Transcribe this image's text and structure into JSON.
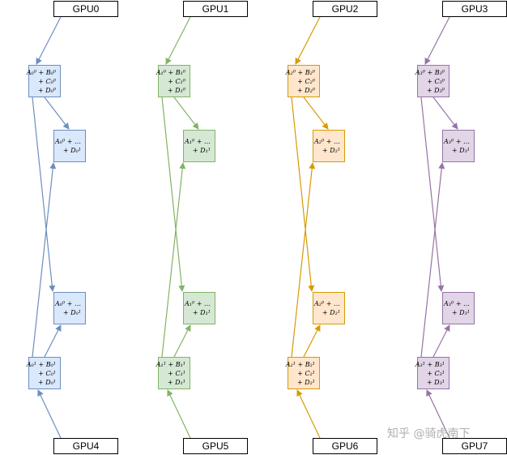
{
  "gpus": [
    "GPU0",
    "GPU1",
    "GPU2",
    "GPU3",
    "GPU4",
    "GPU5",
    "GPU6",
    "GPU7"
  ],
  "columns": [
    {
      "color": "#6c8ebf",
      "top_cell": [
        "A₀⁰ + B₀⁰",
        "+ C₀⁰",
        "+ D₀⁰"
      ],
      "mid_cell_upper": [
        "A₀⁰ + …",
        "+ D₀¹"
      ],
      "mid_cell_lower": [
        "A₀⁰ + …",
        "+ D₀¹"
      ],
      "bottom_cell": [
        "A₀¹ + B₀¹",
        "+ C₀¹",
        "+ D₀¹"
      ]
    },
    {
      "color": "#82b366",
      "top_cell": [
        "A₁⁰ + B₁⁰",
        "+ C₁⁰",
        "+ D₁⁰"
      ],
      "mid_cell_upper": [
        "A₁⁰ + …",
        "+ D₁¹"
      ],
      "mid_cell_lower": [
        "A₁⁰ + …",
        "+ D₁¹"
      ],
      "bottom_cell": [
        "A₁¹ + B₁¹",
        "+ C₁¹",
        "+ D₁¹"
      ]
    },
    {
      "color": "#d79b00",
      "top_cell": [
        "A₂⁰ + B₂⁰",
        "+ C₂⁰",
        "+ D₂⁰"
      ],
      "mid_cell_upper": [
        "A₂⁰ + …",
        "+ D₂¹"
      ],
      "mid_cell_lower": [
        "A₂⁰ + …",
        "+ D₂¹"
      ],
      "bottom_cell": [
        "A₂¹ + B₂¹",
        "+ C₂¹",
        "+ D₂¹"
      ]
    },
    {
      "color": "#9673a6",
      "top_cell": [
        "A₃⁰ + B₃⁰",
        "+ C₃⁰",
        "+ D₃⁰"
      ],
      "mid_cell_upper": [
        "A₃⁰ + …",
        "+ D₃¹"
      ],
      "mid_cell_lower": [
        "A₃⁰ + …",
        "+ D₃¹"
      ],
      "bottom_cell": [
        "A₃¹ + B₃¹",
        "+ C₃¹",
        "+ D₃¹"
      ]
    }
  ],
  "watermark": "知乎 @骑虎南下"
}
